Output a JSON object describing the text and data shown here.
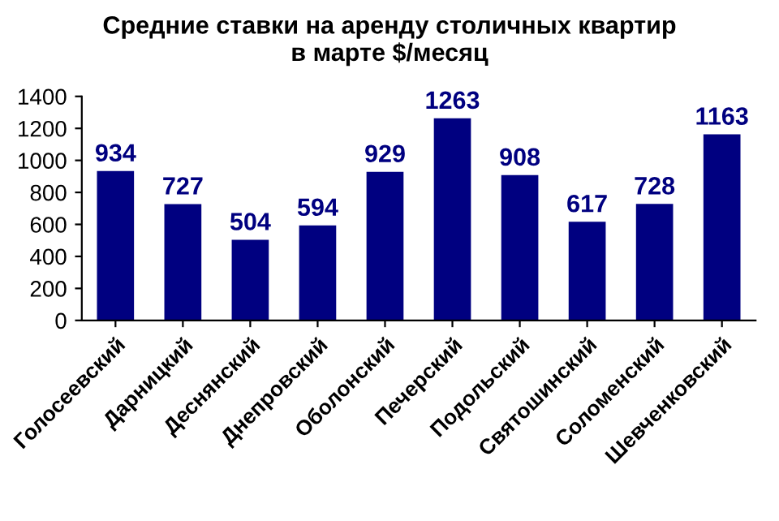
{
  "chart_data": {
    "type": "bar",
    "title": "Средние ставки на аренду столичных квартир\nв марте $/месяц",
    "categories": [
      "Голосеевский",
      "Дарницкий",
      "Деснянский",
      "Днепровский",
      "Оболонский",
      "Печерский",
      "Подольский",
      "Святошинский",
      "Соломенский",
      "Шевченковский"
    ],
    "values": [
      934,
      727,
      504,
      594,
      929,
      1263,
      908,
      617,
      728,
      1163
    ],
    "color": "#000080",
    "ylim": [
      0,
      1400
    ],
    "yticks": [
      0,
      200,
      400,
      600,
      800,
      1000,
      1200,
      1400
    ],
    "grid": false,
    "data_labels": true
  }
}
